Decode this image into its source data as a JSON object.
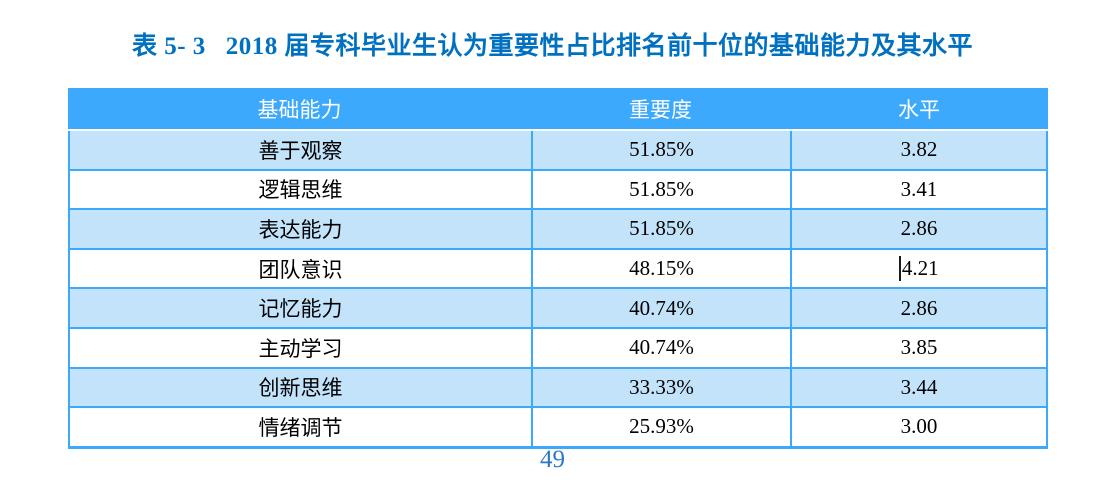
{
  "page": {
    "title_prefix": "表 5- 3",
    "title_text": "2018 届专科毕业生认为重要性占比排名前十位的基础能力及其水平",
    "page_number": "49"
  },
  "colors": {
    "header_blue": "#3DA9FC",
    "row_light_blue": "#C3E3FB",
    "border_blue": "#3DA9FC",
    "title_blue": "#0070C0",
    "page_number_blue": "#2B77C5",
    "body_text": "#000000"
  },
  "table": {
    "columns": [
      "基础能力",
      "重要度",
      "水平"
    ],
    "rows": [
      {
        "ability": "善于观察",
        "importance": "51.85%",
        "level": "3.82"
      },
      {
        "ability": "逻辑思维",
        "importance": "51.85%",
        "level": "3.41"
      },
      {
        "ability": "表达能力",
        "importance": "51.85%",
        "level": "2.86"
      },
      {
        "ability": "团队意识",
        "importance": "48.15%",
        "level": "4.21",
        "text_cursor_before_level": true
      },
      {
        "ability": "记忆能力",
        "importance": "40.74%",
        "level": "2.86"
      },
      {
        "ability": "主动学习",
        "importance": "40.74%",
        "level": "3.85"
      },
      {
        "ability": "创新思维",
        "importance": "33.33%",
        "level": "3.44"
      },
      {
        "ability": "情绪调节",
        "importance": "25.93%",
        "level": "3.00"
      }
    ]
  }
}
